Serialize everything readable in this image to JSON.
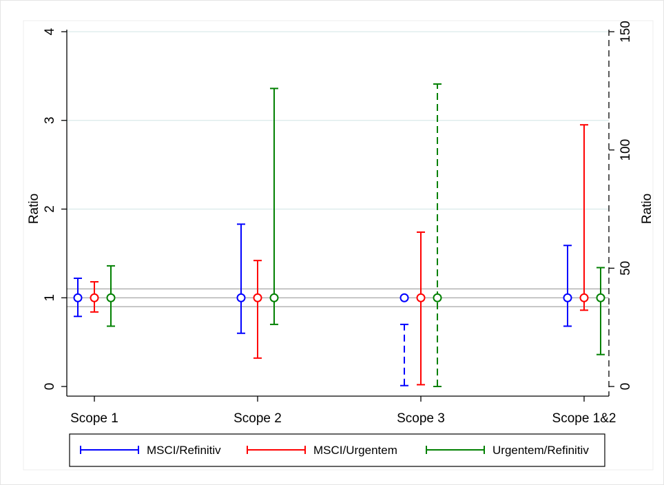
{
  "chart_data": {
    "type": "scatter",
    "subtype": "error-bar",
    "categories": [
      "Scope 1",
      "Scope 2",
      "Scope 3",
      "Scope 1&2"
    ],
    "ylabel_left": "Ratio",
    "ylabel_right": "Ratio",
    "ylim_left": [
      0,
      4
    ],
    "ylim_right": [
      0,
      150
    ],
    "yticks_left": [
      "0",
      "1",
      "2",
      "3",
      "4"
    ],
    "yticks_right": [
      "0",
      "50",
      "100",
      "150"
    ],
    "reference_lines": [
      0.9,
      1.0,
      1.1
    ],
    "grid": true,
    "legend_position": "bottom",
    "series": [
      {
        "name": "MSCI/Refinitiv",
        "color": "#0000ff",
        "points": [
          {
            "category": "Scope 1",
            "estimate": 1,
            "lower": 0.79,
            "upper": 1.22,
            "axis": "left",
            "line_style": "solid"
          },
          {
            "category": "Scope 2",
            "estimate": 1,
            "lower": 0.6,
            "upper": 1.83,
            "axis": "left",
            "line_style": "solid"
          },
          {
            "category": "Scope 3",
            "estimate": 1,
            "lower": 0.01,
            "upper": 0.7,
            "axis": "left",
            "line_style": "dashed"
          },
          {
            "category": "Scope 1&2",
            "estimate": 1,
            "lower": 0.68,
            "upper": 1.59,
            "axis": "left",
            "line_style": "solid"
          }
        ]
      },
      {
        "name": "MSCI/Urgentem",
        "color": "#ff0000",
        "points": [
          {
            "category": "Scope 1",
            "estimate": 1,
            "lower": 0.84,
            "upper": 1.18,
            "axis": "left",
            "line_style": "solid"
          },
          {
            "category": "Scope 2",
            "estimate": 1,
            "lower": 0.32,
            "upper": 1.42,
            "axis": "left",
            "line_style": "solid"
          },
          {
            "category": "Scope 3",
            "estimate": 1,
            "lower": 0.02,
            "upper": 1.74,
            "axis": "left",
            "line_style": "solid"
          },
          {
            "category": "Scope 1&2",
            "estimate": 1,
            "lower": 0.86,
            "upper": 2.95,
            "axis": "left",
            "line_style": "solid"
          }
        ]
      },
      {
        "name": "Urgentem/Refinitiv",
        "color": "#008000",
        "points": [
          {
            "category": "Scope 1",
            "estimate": 1,
            "lower": 0.68,
            "upper": 1.36,
            "axis": "left",
            "line_style": "solid"
          },
          {
            "category": "Scope 2",
            "estimate": 1,
            "lower": 0.7,
            "upper": 3.36,
            "axis": "left",
            "line_style": "solid"
          },
          {
            "category": "Scope 3",
            "estimate": 1,
            "lower": 0,
            "upper": 3.41,
            "axis": "left",
            "line_style": "dashed"
          },
          {
            "category": "Scope 1&2",
            "estimate": 1,
            "lower": 0.36,
            "upper": 1.34,
            "axis": "left",
            "line_style": "solid"
          }
        ]
      }
    ]
  }
}
